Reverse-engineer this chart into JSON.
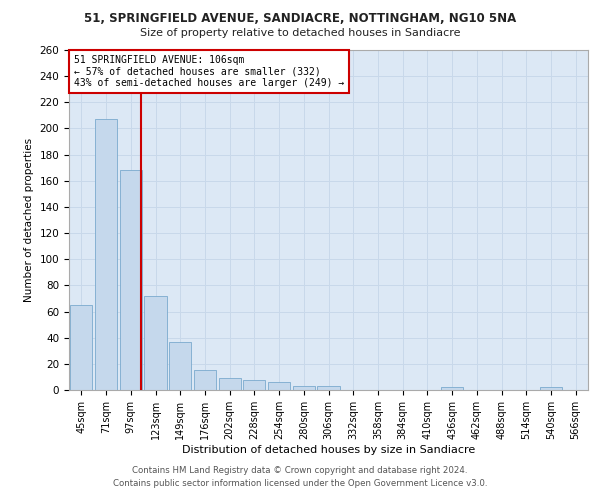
{
  "title1": "51, SPRINGFIELD AVENUE, SANDIACRE, NOTTINGHAM, NG10 5NA",
  "title2": "Size of property relative to detached houses in Sandiacre",
  "xlabel": "Distribution of detached houses by size in Sandiacre",
  "ylabel": "Number of detached properties",
  "bar_labels": [
    "45sqm",
    "71sqm",
    "97sqm",
    "123sqm",
    "149sqm",
    "176sqm",
    "202sqm",
    "228sqm",
    "254sqm",
    "280sqm",
    "306sqm",
    "332sqm",
    "358sqm",
    "384sqm",
    "410sqm",
    "436sqm",
    "462sqm",
    "488sqm",
    "514sqm",
    "540sqm",
    "566sqm"
  ],
  "bar_values": [
    65,
    207,
    168,
    72,
    37,
    15,
    9,
    8,
    6,
    3,
    3,
    0,
    0,
    0,
    0,
    2,
    0,
    0,
    0,
    2,
    0
  ],
  "bar_color": "#c5d8ec",
  "bar_edge_color": "#7aaace",
  "vertical_line_color": "#cc0000",
  "vertical_line_x": 2.43,
  "annotation_line1": "51 SPRINGFIELD AVENUE: 106sqm",
  "annotation_line2": "← 57% of detached houses are smaller (332)",
  "annotation_line3": "43% of semi-detached houses are larger (249) →",
  "annotation_box_color": "#ffffff",
  "annotation_box_edge_color": "#cc0000",
  "grid_color": "#c8d8ea",
  "background_color": "#dce8f5",
  "footer_line1": "Contains HM Land Registry data © Crown copyright and database right 2024.",
  "footer_line2": "Contains public sector information licensed under the Open Government Licence v3.0.",
  "ylim": [
    0,
    260
  ],
  "yticks": [
    0,
    20,
    40,
    60,
    80,
    100,
    120,
    140,
    160,
    180,
    200,
    220,
    240,
    260
  ]
}
